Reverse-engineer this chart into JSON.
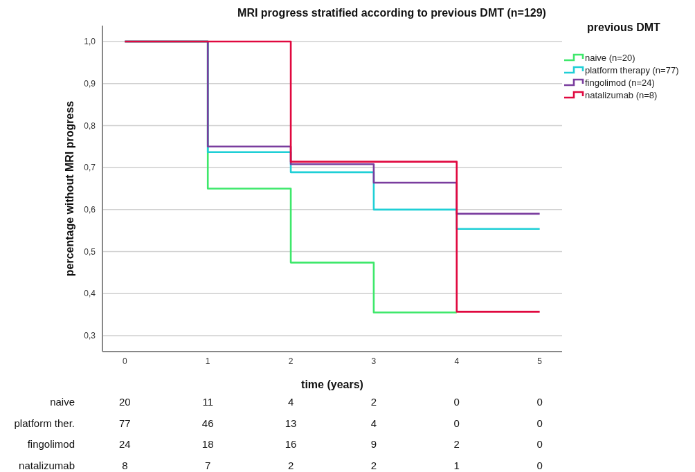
{
  "chart_data": {
    "type": "step",
    "title": "MRI progress stratified according to previous DMT (n=129)",
    "xlabel": "time (years)",
    "ylabel": "percentage without MRI progress",
    "legend_title": "previous DMT",
    "series": [
      {
        "name": "naive (n=20)",
        "color": "#3ee86b",
        "x": [
          0,
          1,
          2,
          3,
          4
        ],
        "values": [
          1,
          0.65,
          0.474,
          0.355,
          0.355
        ]
      },
      {
        "name": "platform therapy (n=77)",
        "color": "#1fcfd6",
        "x": [
          0,
          1,
          2,
          3,
          4,
          5
        ],
        "values": [
          1,
          0.737,
          0.689,
          0.6,
          0.554,
          0.554
        ]
      },
      {
        "name": "fingolimod (n=24)",
        "color": "#7a3d9e",
        "x": [
          0,
          1,
          2,
          3,
          4,
          5
        ],
        "values": [
          1,
          0.75,
          0.708,
          0.664,
          0.59,
          0.59
        ]
      },
      {
        "name": "natalizumab (n=8)",
        "color": "#e0083f",
        "x": [
          0,
          1,
          2,
          3,
          4,
          5
        ],
        "values": [
          1,
          1,
          0.714,
          0.714,
          0.357,
          0.357
        ]
      }
    ],
    "xlim": [
      -0.27,
      5.27
    ],
    "xticks": [
      0,
      1,
      2,
      3,
      4,
      5
    ],
    "ylim": [
      0.262,
      1.038
    ],
    "yticks": [
      {
        "value": 0.3,
        "label": "0,3"
      },
      {
        "value": 0.4,
        "label": "0,4"
      },
      {
        "value": 0.5,
        "label": "0,5"
      },
      {
        "value": 0.6,
        "label": "0,6"
      },
      {
        "value": 0.7,
        "label": "0,7"
      },
      {
        "value": 0.8,
        "label": "0,8"
      },
      {
        "value": 0.9,
        "label": "0,9"
      },
      {
        "value": 1.0,
        "label": "1,0"
      }
    ],
    "grid": "y",
    "legend": "right",
    "line_style": "solid",
    "annotations": [
      "naive",
      "20",
      "11",
      "4",
      "2",
      "0",
      "0",
      "platform ther.",
      "77",
      "46",
      "13",
      "4",
      "0",
      "0",
      "fingolimod",
      "24",
      "18",
      "16",
      "9",
      "2",
      "0",
      "natalizumab",
      "8",
      "7",
      "2",
      "2",
      "1",
      "0"
    ]
  }
}
